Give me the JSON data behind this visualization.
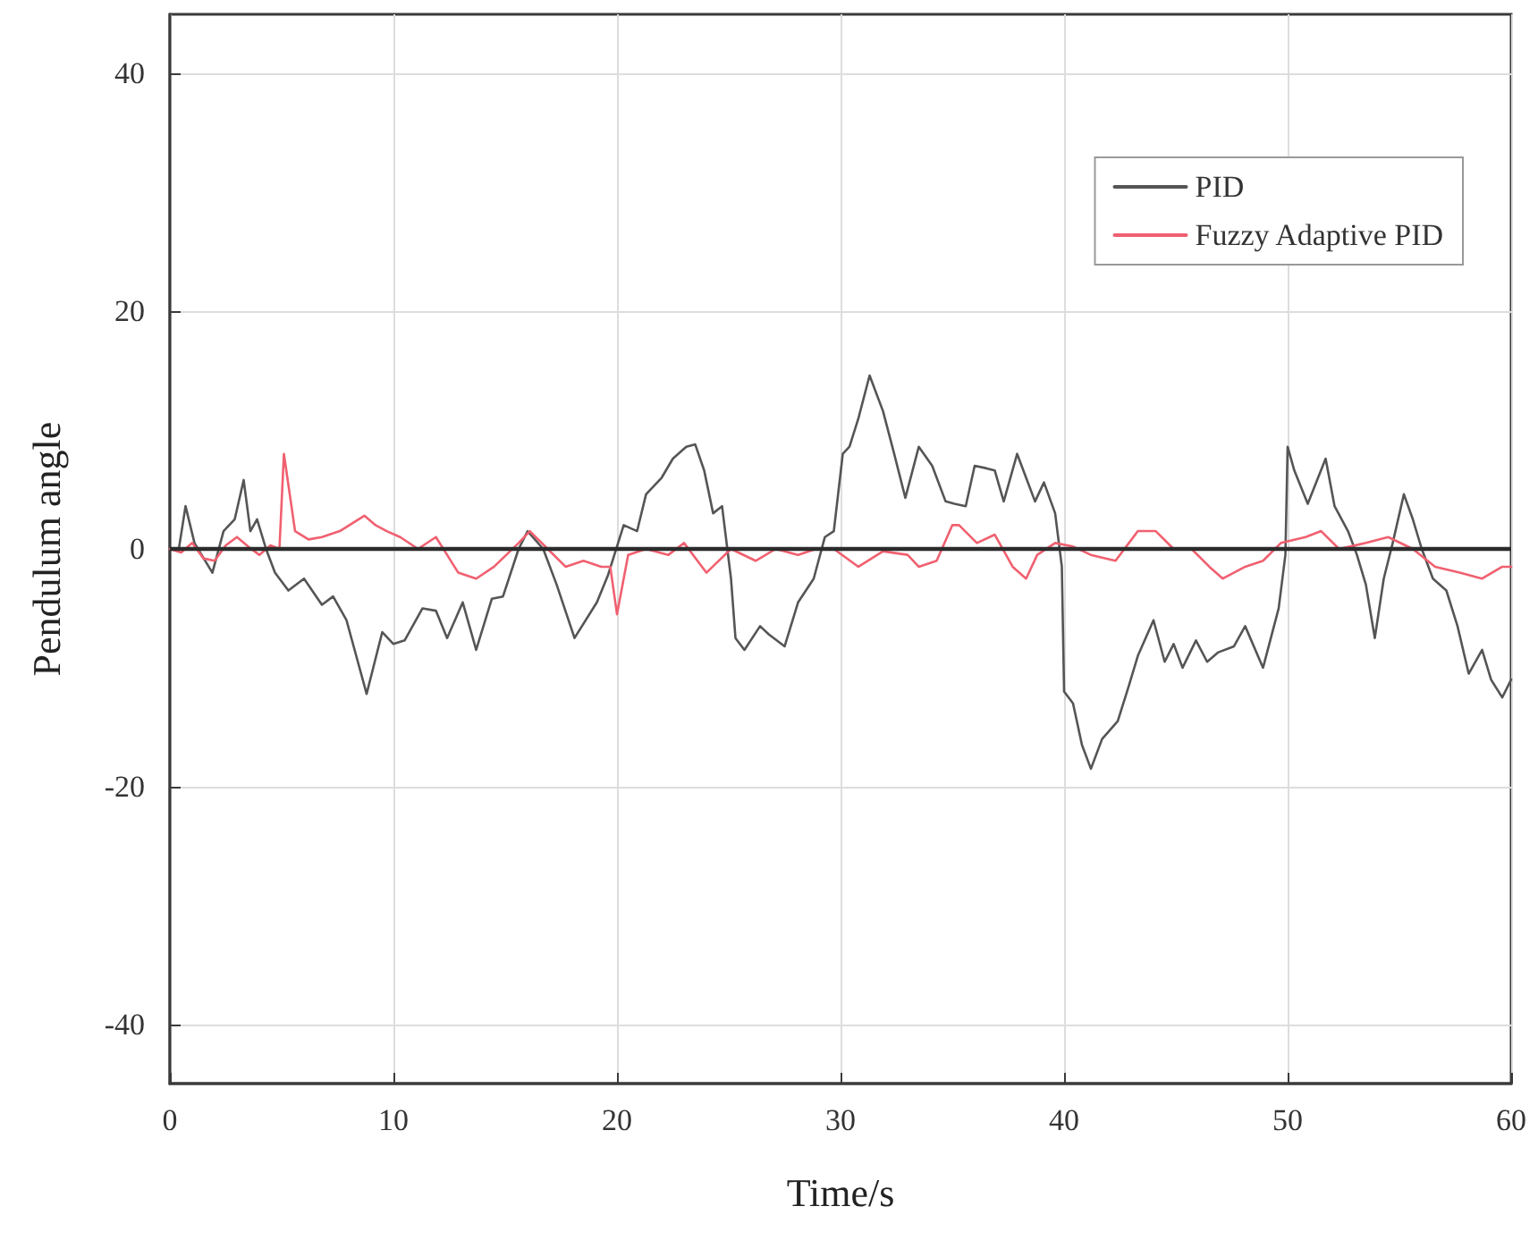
{
  "chart_data": {
    "type": "line",
    "xlabel": "Time/s",
    "ylabel": "Pendulum angle",
    "xlim": [
      0,
      60
    ],
    "xticks": [
      0,
      10,
      20,
      30,
      40,
      50,
      60
    ],
    "ylim": [
      -45,
      45
    ],
    "yticks": [
      -40,
      -20,
      0,
      20,
      40
    ],
    "grid": true,
    "legend": "top right",
    "marker": "none",
    "ref_lines": [
      {
        "axis": "y",
        "value": 0,
        "color": "#2b2b2b"
      }
    ],
    "series": [
      {
        "name": "PID",
        "color": "#555555",
        "x": [
          0,
          0.4,
          0.7,
          1.1,
          1.9,
          2.4,
          2.9,
          3.3,
          3.6,
          3.9,
          4.3,
          4.7,
          5.3,
          6.0,
          6.8,
          7.3,
          7.9,
          8.8,
          9.5,
          10.0,
          10.5,
          11.3,
          11.9,
          12.4,
          13.1,
          13.7,
          14.4,
          14.9,
          15.6,
          16.0,
          16.7,
          17.3,
          18.1,
          19.1,
          19.6,
          20.3,
          20.9,
          21.3,
          22.0,
          22.5,
          23.1,
          23.5,
          23.9,
          24.3,
          24.7,
          25.1,
          25.3,
          25.7,
          26.4,
          26.8,
          27.5,
          28.1,
          28.8,
          29.3,
          29.7,
          30.1,
          30.4,
          30.8,
          31.3,
          31.9,
          32.4,
          32.9,
          33.5,
          34.1,
          34.7,
          35.1,
          35.6,
          36.0,
          36.5,
          36.9,
          37.3,
          37.9,
          38.3,
          38.7,
          39.1,
          39.6,
          39.9,
          40.0,
          40.4,
          40.8,
          41.2,
          41.7,
          42.4,
          42.9,
          43.3,
          44.0,
          44.5,
          44.9,
          45.3,
          45.9,
          46.4,
          46.9,
          47.6,
          48.1,
          48.9,
          49.6,
          49.9,
          50.0,
          50.3,
          50.9,
          51.7,
          52.1,
          52.7,
          53.1,
          53.5,
          53.9,
          54.3,
          54.7,
          55.2,
          55.6,
          56.0,
          56.5,
          57.1,
          57.6,
          58.1,
          58.7,
          59.1,
          59.6,
          60
        ],
        "values": [
          0,
          0,
          3.6,
          0.5,
          -2,
          1.5,
          2.5,
          5.8,
          1.5,
          2.5,
          0,
          -2,
          -3.5,
          -2.5,
          -4.7,
          -4,
          -6,
          -12.2,
          -7,
          -8,
          -7.7,
          -5,
          -5.2,
          -7.5,
          -4.5,
          -8.5,
          -4.2,
          -4,
          0,
          1.5,
          0,
          -3,
          -7.5,
          -4.5,
          -2.2,
          2,
          1.5,
          4.6,
          6,
          7.6,
          8.6,
          8.8,
          6.6,
          3,
          3.6,
          -2.5,
          -7.5,
          -8.5,
          -6.5,
          -7.2,
          -8.2,
          -4.5,
          -2.5,
          1,
          1.5,
          8,
          8.6,
          11,
          14.6,
          11.6,
          8,
          4.3,
          8.6,
          7,
          4,
          3.8,
          3.6,
          7,
          6.8,
          6.6,
          4,
          8,
          6,
          4,
          5.6,
          3,
          -1.5,
          -12,
          -13,
          -16.5,
          -18.5,
          -16,
          -14.5,
          -11.5,
          -9,
          -6,
          -9.5,
          -8,
          -10,
          -7.7,
          -9.5,
          -8.7,
          -8.2,
          -6.5,
          -10,
          -5,
          -0.5,
          8.6,
          6.6,
          3.8,
          7.6,
          3.6,
          1.5,
          -0.5,
          -3,
          -7.5,
          -2.5,
          0.5,
          4.6,
          2.5,
          0,
          -2.5,
          -3.5,
          -6.5,
          -10.5,
          -8.5,
          -11,
          -12.5,
          -11
        ]
      },
      {
        "name": "Fuzzy Adaptive PID",
        "color": "#f06070",
        "x": [
          0,
          0.5,
          1,
          1.5,
          2,
          2.5,
          3,
          3.5,
          4,
          4.5,
          4.9,
          5.1,
          5.6,
          6.2,
          6.8,
          7.6,
          8.7,
          9.2,
          9.7,
          10.3,
          11.1,
          11.9,
          12.4,
          12.9,
          13.7,
          14.5,
          15.6,
          16.1,
          16.9,
          17.7,
          18.5,
          19.3,
          19.7,
          20.0,
          20.5,
          21.3,
          22.3,
          23.0,
          24.0,
          25.1,
          26.2,
          27.1,
          28.1,
          28.9,
          29.7,
          30.8,
          31.9,
          33.0,
          33.5,
          34.3,
          35.0,
          35.3,
          36.1,
          36.9,
          37.7,
          38.3,
          38.8,
          39.6,
          40.4,
          41.2,
          42.3,
          43.3,
          44.1,
          44.9,
          45.7,
          46.5,
          47.1,
          48.1,
          48.9,
          49.7,
          50.8,
          51.5,
          52.3,
          53.5,
          54.5,
          55.6,
          56.6,
          57.7,
          58.7,
          59.6,
          60
        ],
        "values": [
          0,
          -0.3,
          0.5,
          -0.8,
          -1,
          0.3,
          1,
          0.2,
          -0.5,
          0.3,
          0,
          8,
          1.5,
          0.8,
          1,
          1.5,
          2.8,
          2,
          1.5,
          1,
          0,
          1,
          -0.5,
          -2,
          -2.5,
          -1.5,
          0.5,
          1.5,
          0,
          -1.5,
          -1,
          -1.5,
          -1.5,
          -5.5,
          -0.5,
          0,
          -0.5,
          0.5,
          -2,
          0,
          -1,
          0,
          -0.5,
          0,
          0,
          -1.5,
          -0.2,
          -0.5,
          -1.5,
          -1,
          2,
          2,
          0.5,
          1.2,
          -1.5,
          -2.5,
          -0.5,
          0.5,
          0.2,
          -0.5,
          -1,
          1.5,
          1.5,
          0,
          0,
          -1.5,
          -2.5,
          -1.5,
          -1,
          0.5,
          1,
          1.5,
          0,
          0.5,
          1,
          0,
          -1.5,
          -2,
          -2.5,
          -1.5,
          -1.5
        ]
      }
    ]
  }
}
